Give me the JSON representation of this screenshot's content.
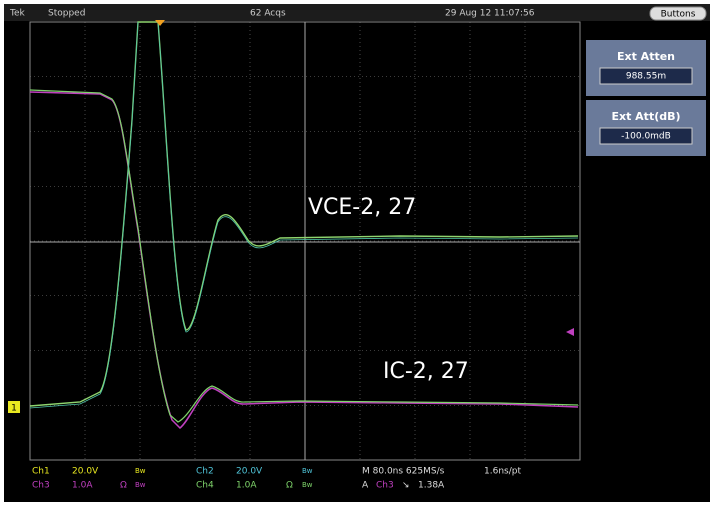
{
  "status_bar": {
    "brand": "Tek",
    "state": "Stopped",
    "acquisitions": "62 Acqs",
    "timestamp": "29 Aug 12 11:07:56",
    "menu_button": "Buttons"
  },
  "side_panel": {
    "items": [
      {
        "label": "Ext Atten",
        "value": "988.55m"
      },
      {
        "label": "Ext Att(dB)",
        "value": "-100.0mdB"
      }
    ]
  },
  "annotations": {
    "upper": "VCE-2, 27",
    "lower": "IC-2, 27"
  },
  "ground_marker": "1",
  "readout": {
    "ch1": {
      "name": "Ch1",
      "scale": "20.0V",
      "bw": "Bw"
    },
    "ch2": {
      "name": "Ch2",
      "scale": "20.0V",
      "bw": "Bw"
    },
    "ch3": {
      "name": "Ch3",
      "scale": "1.0A",
      "ohm": "Ω",
      "bw": "Bw"
    },
    "ch4": {
      "name": "Ch4",
      "scale": "1.0A",
      "ohm": "Ω",
      "bw": "Bw"
    },
    "timebase": "M 80.0ns 625MS/s",
    "resolution": "1.6ns/pt",
    "trigger": {
      "mode": "A",
      "source": "Ch3",
      "slope": "↘",
      "level": "1.38A"
    }
  }
}
